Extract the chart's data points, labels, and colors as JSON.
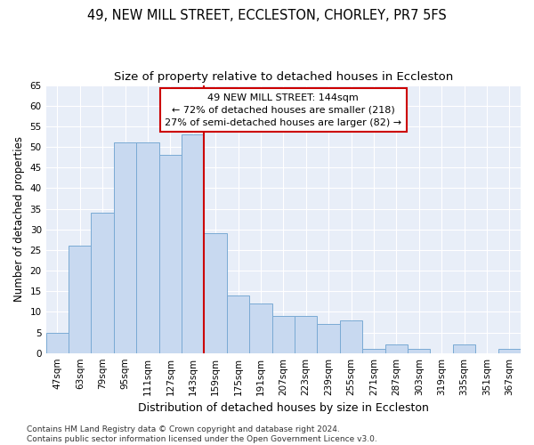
{
  "title": "49, NEW MILL STREET, ECCLESTON, CHORLEY, PR7 5FS",
  "subtitle": "Size of property relative to detached houses in Eccleston",
  "xlabel": "Distribution of detached houses by size in Eccleston",
  "ylabel": "Number of detached properties",
  "categories": [
    "47sqm",
    "63sqm",
    "79sqm",
    "95sqm",
    "111sqm",
    "127sqm",
    "143sqm",
    "159sqm",
    "175sqm",
    "191sqm",
    "207sqm",
    "223sqm",
    "239sqm",
    "255sqm",
    "271sqm",
    "287sqm",
    "303sqm",
    "319sqm",
    "335sqm",
    "351sqm",
    "367sqm"
  ],
  "values": [
    5,
    26,
    34,
    51,
    51,
    48,
    53,
    29,
    14,
    12,
    9,
    9,
    7,
    8,
    1,
    2,
    1,
    0,
    2,
    0,
    1
  ],
  "bar_color": "#c8d9f0",
  "bar_edge_color": "#7aaad4",
  "vline_color": "#cc0000",
  "vline_x_index": 6,
  "annotation_text": "49 NEW MILL STREET: 144sqm\n← 72% of detached houses are smaller (218)\n27% of semi-detached houses are larger (82) →",
  "annotation_box_color": "#ffffff",
  "annotation_box_edge": "#cc0000",
  "ylim": [
    0,
    65
  ],
  "yticks": [
    0,
    5,
    10,
    15,
    20,
    25,
    30,
    35,
    40,
    45,
    50,
    55,
    60,
    65
  ],
  "background_color": "#ffffff",
  "plot_bg_color": "#e8eef8",
  "grid_color": "#ffffff",
  "footer": "Contains HM Land Registry data © Crown copyright and database right 2024.\nContains public sector information licensed under the Open Government Licence v3.0.",
  "title_fontsize": 10.5,
  "subtitle_fontsize": 9.5,
  "xlabel_fontsize": 9,
  "ylabel_fontsize": 8.5,
  "tick_fontsize": 7.5,
  "annotation_fontsize": 8,
  "footer_fontsize": 6.5
}
